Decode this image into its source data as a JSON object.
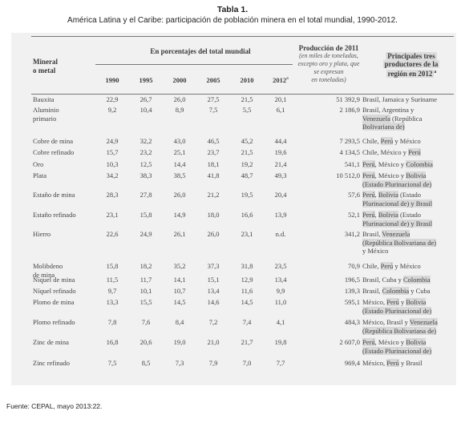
{
  "caption": {
    "number": "Tabla 1.",
    "title": "América Latina y el Caribe: participación de población minera en el total mundial, 1990-2012."
  },
  "headers": {
    "mineral": [
      "Mineral",
      "o metal"
    ],
    "percent": "En porcentajes del total mundial",
    "production": "Producción de 2011",
    "production_note": [
      "(en miles de toneladas,",
      "excepto oro y plata, que",
      "se expresan",
      "en toneladas)"
    ],
    "producers": [
      "Principales tres",
      "productores de la",
      "región en 2012"
    ],
    "years": [
      "1990",
      "1995",
      "2000",
      "2005",
      "2010",
      "2012"
    ],
    "year_2012_mark": "a",
    "producers_mark": "a"
  },
  "rows": [
    {
      "name": [
        "Bauxita"
      ],
      "values": [
        "22,9",
        "26,7",
        "26,0",
        "27,5",
        "21,5",
        "20,1"
      ],
      "production": "51 392,9",
      "countries": [
        "Brasil, Jamaica y Suriname"
      ]
    },
    {
      "name": [
        "Aluminio",
        "primario"
      ],
      "values": [
        "9,2",
        "10,4",
        "8,9",
        "7,5",
        "5,5",
        "6,1"
      ],
      "production": "2 186,9",
      "countries": [
        "Brasil, Argentina y",
        "Venezuela (República",
        "Bolivariana de)"
      ]
    },
    {
      "name": [
        "Cobre de mina"
      ],
      "values": [
        "24,9",
        "32,2",
        "43,0",
        "46,5",
        "45,2",
        "44,4"
      ],
      "production": "7 293,5",
      "countries": [
        "Chile, Perú y México"
      ]
    },
    {
      "name": [
        "Cobre refinado"
      ],
      "values": [
        "15,7",
        "23,2",
        "25,1",
        "23,7",
        "21,5",
        "19,6"
      ],
      "production": "4 134,5",
      "countries": [
        "Chile, México y Perú"
      ]
    },
    {
      "name": [
        "Oro"
      ],
      "values": [
        "10,3",
        "12,5",
        "14,4",
        "18,1",
        "19,2",
        "21,4"
      ],
      "production": "541,1",
      "countries": [
        "Perú, México y Colombia"
      ]
    },
    {
      "name": [
        "Plata"
      ],
      "values": [
        "34,2",
        "38,3",
        "38,5",
        "41,8",
        "48,7",
        "49,3"
      ],
      "production": "10 512,0",
      "countries": [
        "Perú, México y Bolivia",
        "(Estado Plurinacional de)"
      ]
    },
    {
      "name": [
        "Estaño de mina"
      ],
      "values": [
        "28,3",
        "27,8",
        "26,0",
        "21,2",
        "19,5",
        "20,4"
      ],
      "production": "57,6",
      "countries": [
        "Perú, Bolivia (Estado",
        "Plurinacional de) y Brasil"
      ]
    },
    {
      "name": [
        "Estaño refinado"
      ],
      "values": [
        "23,1",
        "15,8",
        "14,9",
        "18,0",
        "16,6",
        "13,9"
      ],
      "production": "52,1",
      "countries": [
        "Perú, Bolivia (Estado",
        "Plurinacional de) y Brasil"
      ]
    },
    {
      "name": [
        "Hierro"
      ],
      "values": [
        "22,6",
        "24,9",
        "26,1",
        "26,0",
        "23,1",
        "n.d."
      ],
      "production": "341,2",
      "countries": [
        "Brasil, Venezuela",
        "(República Bolivariana de)",
        "y México"
      ]
    },
    {
      "name": [
        "Molibdeno",
        "de mina"
      ],
      "values": [
        "15,8",
        "18,2",
        "35,2",
        "37,3",
        "31,8",
        "23,5"
      ],
      "production": "70,9",
      "countries": [
        "Chile, Perú y México"
      ]
    },
    {
      "name": [
        "Níquel de mina"
      ],
      "values": [
        "11,5",
        "11,7",
        "14,1",
        "15,1",
        "12,9",
        "13,4"
      ],
      "production": "196,5",
      "countries": [
        "Brasil, Cuba y Colombia"
      ]
    },
    {
      "name": [
        "Níquel refinado"
      ],
      "values": [
        "9,7",
        "10,1",
        "10,7",
        "13,4",
        "11,6",
        "9,9"
      ],
      "production": "139,3",
      "countries": [
        "Brasil, Colombia y Cuba"
      ]
    },
    {
      "name": [
        "Plomo de mina"
      ],
      "values": [
        "13,3",
        "15,5",
        "14,5",
        "14,6",
        "14,5",
        "11,0"
      ],
      "production": "595,1",
      "countries": [
        "México, Perú y Bolivia",
        "(Estado Plurinacional de)"
      ]
    },
    {
      "name": [
        "Plomo refinado"
      ],
      "values": [
        "7,8",
        "7,6",
        "8,4",
        "7,2",
        "7,4",
        "4,1"
      ],
      "production": "484,3",
      "countries": [
        "México, Brasil y Venezuela",
        "(República Bolivariana de)"
      ]
    },
    {
      "name": [
        "Zinc de mina"
      ],
      "values": [
        "16,8",
        "20,6",
        "19,0",
        "21,0",
        "21,7",
        "19,8"
      ],
      "production": "2 607,0",
      "countries": [
        "Perú, México y Bolivia",
        "(Estado Plurinacional de)"
      ]
    },
    {
      "name": [
        "Zinc refinado"
      ],
      "values": [
        "7,5",
        "8,5",
        "7,3",
        "7,9",
        "7,0",
        "7,7"
      ],
      "production": "969,4",
      "countries": [
        "México, Perú y Brasil"
      ]
    }
  ],
  "source": "Fuente: CEPAL, mayo 2013:22."
}
